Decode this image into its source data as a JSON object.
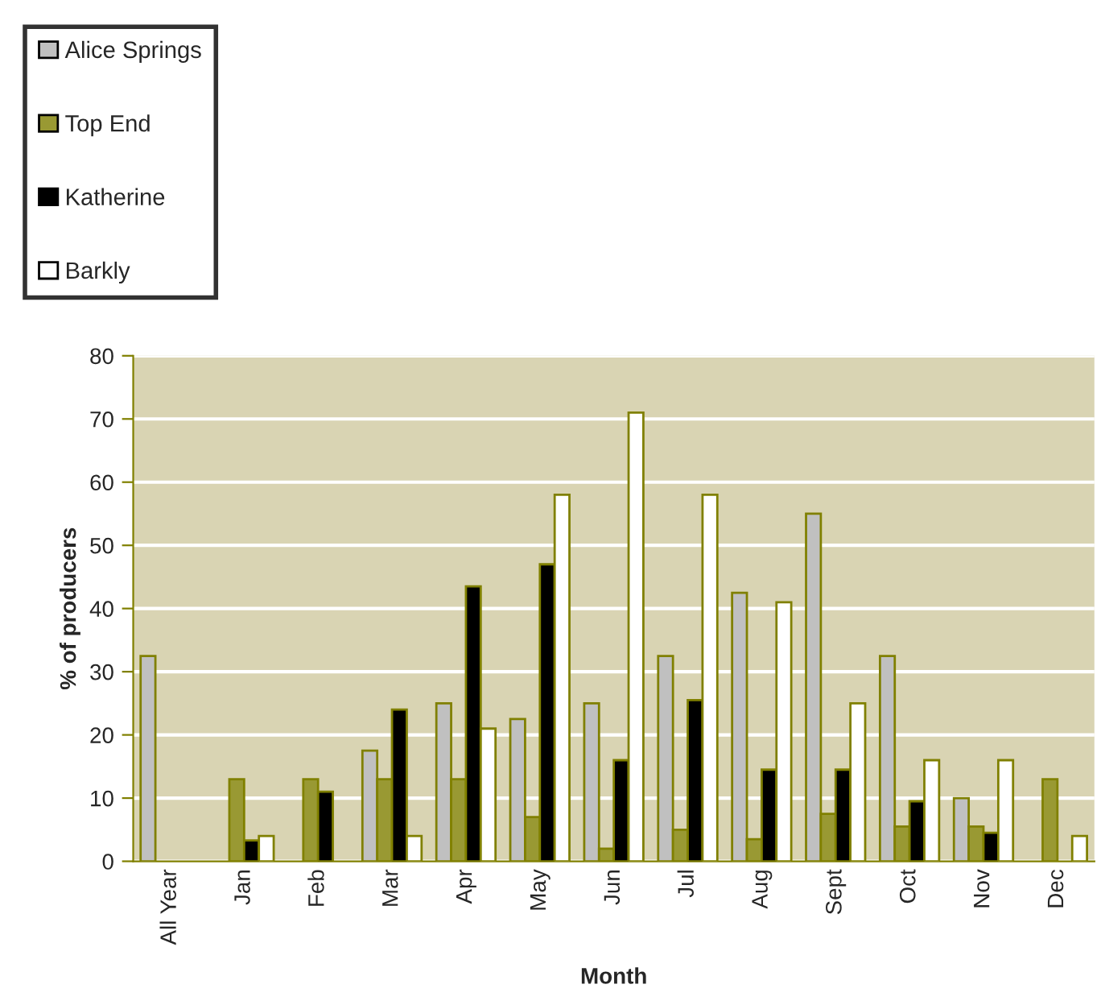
{
  "chart_data": {
    "type": "bar",
    "xlabel": "Month",
    "ylabel": "% of producers",
    "categories": [
      "All Year",
      "Jan",
      "Feb",
      "Mar",
      "Apr",
      "May",
      "Jun",
      "Jul",
      "Aug",
      "Sept",
      "Oct",
      "Nov",
      "Dec"
    ],
    "series": [
      {
        "name": "Alice Springs",
        "color": "#c0c0c0",
        "values": [
          32.5,
          null,
          null,
          17.5,
          25,
          22.5,
          25,
          32.5,
          42.5,
          55,
          32.5,
          10,
          null
        ]
      },
      {
        "name": "Top End",
        "color": "#999933",
        "values": [
          null,
          13,
          13,
          13,
          13,
          7,
          2,
          5,
          3.5,
          7.5,
          5.5,
          5.5,
          13
        ]
      },
      {
        "name": "Katherine",
        "color": "#000000",
        "values": [
          null,
          3.3,
          11,
          24,
          43.5,
          47,
          16,
          25.5,
          14.5,
          14.5,
          9.5,
          4.5,
          null
        ]
      },
      {
        "name": "Barkly",
        "color": "#ffffff",
        "values": [
          null,
          4,
          null,
          4,
          21,
          58,
          71,
          58,
          41,
          25,
          16,
          16,
          4
        ]
      }
    ],
    "ylim": [
      0,
      80
    ],
    "yticks": [
      0,
      10,
      20,
      30,
      40,
      50,
      60,
      70,
      80
    ],
    "grid": "y",
    "legend": "top left"
  }
}
